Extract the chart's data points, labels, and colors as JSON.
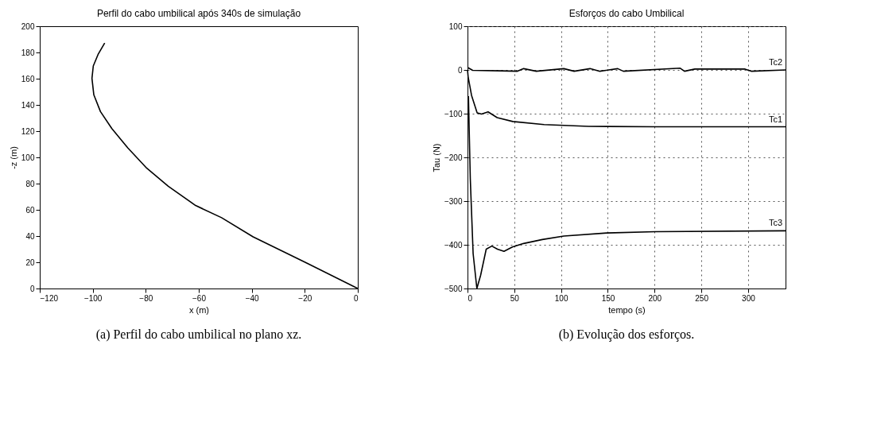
{
  "chart_data": [
    {
      "type": "line",
      "title": "Perfil do cabo umbilical após 340s de simulação",
      "xlabel": "x (m)",
      "ylabel": "-z (m)",
      "annotations": [
        "(a) Perfil do cabo umbilical no plano xz."
      ],
      "xlim": [
        -120,
        0
      ],
      "xticks": [
        -120,
        -100,
        -80,
        -60,
        -40,
        -20,
        0
      ],
      "ylim": [
        0,
        200
      ],
      "yticks": [
        0,
        20,
        40,
        60,
        80,
        100,
        120,
        140,
        160,
        180,
        200
      ],
      "grid": false,
      "series": [
        {
          "color": "#000000",
          "x": [
            0,
            -19.4,
            -39.5,
            -51.4,
            -61.2,
            -71.5,
            -79.6,
            -86.8,
            -92.8,
            -97.1,
            -99.6,
            -100.3,
            -99.8,
            -97.9,
            -95.5
          ],
          "values": [
            0,
            19.6,
            39.4,
            54,
            63.3,
            78,
            91.7,
            107.3,
            122,
            134.9,
            147.7,
            160.2,
            169.7,
            178.9,
            187.2
          ]
        }
      ]
    },
    {
      "type": "line",
      "title": "Esforços do cabo Umbilical",
      "xlabel": "tempo (s)",
      "ylabel": "Tau (N)",
      "annotations": [
        "(b) Evolução dos esforços."
      ],
      "xlim": [
        0,
        340
      ],
      "xticks": [
        0,
        50,
        100,
        150,
        200,
        250,
        300
      ],
      "ylim": [
        -500,
        100
      ],
      "yticks": [
        -500,
        -400,
        -300,
        -200,
        -100,
        0,
        100
      ],
      "grid": true,
      "series": [
        {
          "name": "Tc1",
          "color": "#000000",
          "x": [
            0,
            0.7,
            4.3,
            10.3,
            15,
            22,
            31.7,
            48.4,
            81.9,
            129.6,
            201,
            340
          ],
          "values": [
            0,
            -16,
            -58,
            -98,
            -101,
            -96,
            -109,
            -118,
            -125,
            -129,
            -130,
            -130
          ]
        },
        {
          "name": "Tc2",
          "color": "#000000",
          "x": [
            0.7,
            5.5,
            35,
            53,
            60,
            73.5,
            103,
            114,
            131,
            141.5,
            160.6,
            166.6,
            227.4,
            232,
            243,
            296.7,
            303.8,
            340
          ],
          "values": [
            5,
            -1,
            -2,
            -3,
            3,
            -3,
            3,
            -3,
            3,
            -3,
            3,
            -3,
            4,
            -3,
            2,
            2,
            -3,
            0
          ]
        },
        {
          "name": "Tc3",
          "color": "#000000",
          "x": [
            1,
            3,
            6,
            10,
            14,
            20,
            26,
            32,
            39,
            48,
            60,
            80,
            103,
            149,
            201,
            340
          ],
          "values": [
            -60,
            -250,
            -420,
            -500,
            -470,
            -410,
            -403,
            -410,
            -415,
            -405,
            -397,
            -388,
            -380,
            -373,
            -370,
            -368
          ]
        }
      ]
    }
  ]
}
